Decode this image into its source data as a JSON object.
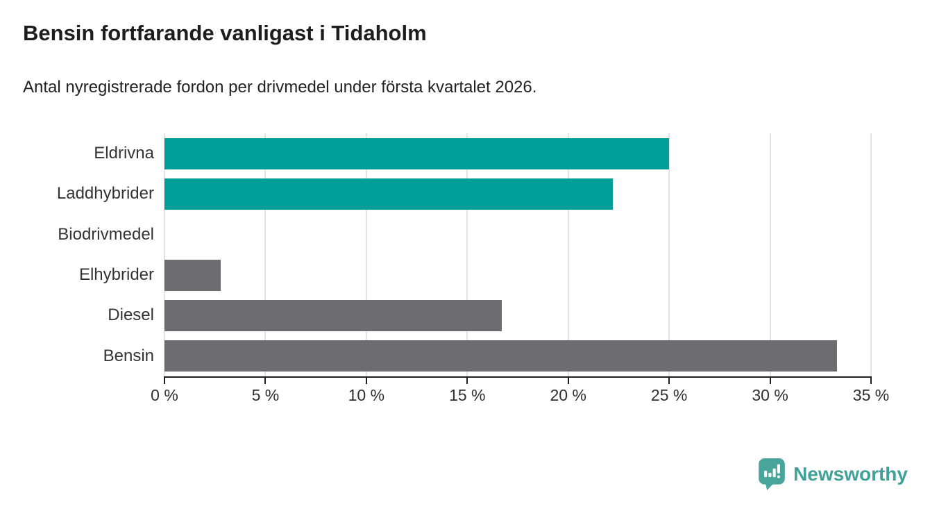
{
  "chart_data": {
    "type": "bar",
    "orientation": "horizontal",
    "title": "Bensin fortfarande vanligast i Tidaholm",
    "subtitle": "Antal nyregistrerade fordon per drivmedel under första kvartalet 2026.",
    "categories": [
      "Eldrivna",
      "Laddhybrider",
      "Biodrivmedel",
      "Elhybrider",
      "Diesel",
      "Bensin"
    ],
    "values": [
      25,
      22.2,
      0,
      2.8,
      16.7,
      33.3
    ],
    "value_unit": "percent",
    "series_colors": [
      "#009E98",
      "#009E98",
      "#6C6C71",
      "#6C6C71",
      "#6C6C71",
      "#6C6C71"
    ],
    "highlight_color": "#009E98",
    "default_bar_color": "#6C6C71",
    "xlim": [
      0,
      35
    ],
    "x_ticks": [
      0,
      5,
      10,
      15,
      20,
      25,
      30,
      35
    ],
    "x_tick_labels": [
      "0 %",
      "5 %",
      "10 %",
      "15 %",
      "20 %",
      "25 %",
      "30 %",
      "35 %"
    ],
    "xlabel": "",
    "ylabel": "",
    "grid": "vertical",
    "legend": "none"
  },
  "branding": {
    "logo_text": "Newsworthy",
    "logo_text_color": "#3FA197",
    "logo_icon_color": "#47A59B"
  },
  "colors": {
    "gridline": "#E3E3E3",
    "axis": "#1F1F1F",
    "tick_label_color": "#2E2E2E",
    "category_label_color": "#333333"
  }
}
